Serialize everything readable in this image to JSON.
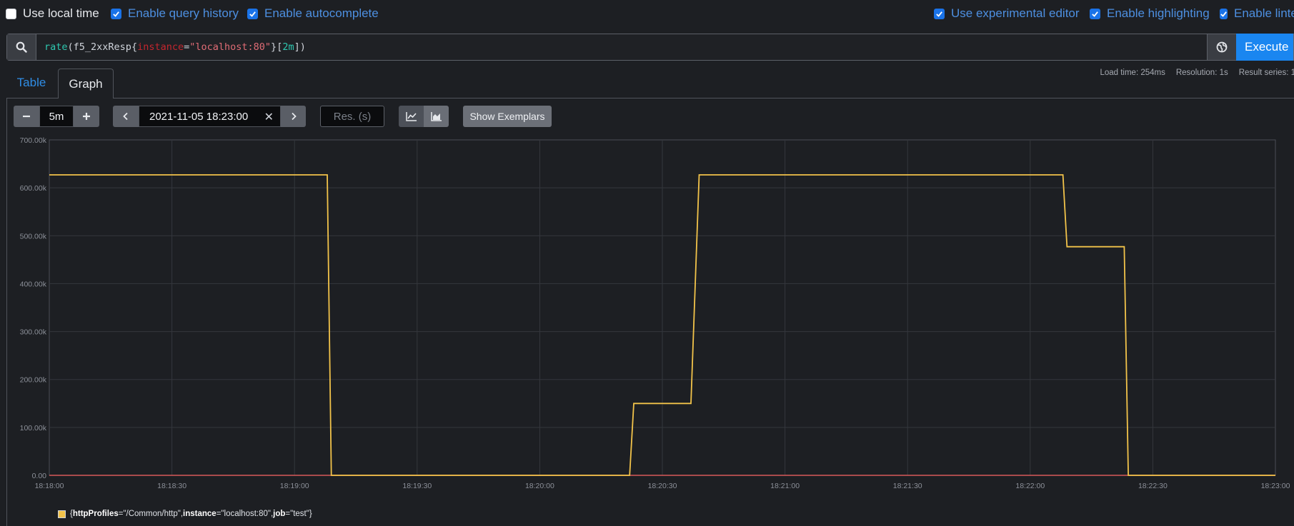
{
  "options": {
    "left": [
      {
        "label": "Use local time",
        "checked": false
      },
      {
        "label": "Enable query history",
        "checked": true
      },
      {
        "label": "Enable autocomplete",
        "checked": true
      }
    ],
    "right": [
      {
        "label": "Use experimental editor",
        "checked": true
      },
      {
        "label": "Enable highlighting",
        "checked": true
      },
      {
        "label": "Enable linter",
        "checked": true
      }
    ]
  },
  "query": {
    "fn": "rate",
    "open_paren": "(",
    "metric": "f5_2xxResp",
    "brace_open": "{",
    "label_name": "instance",
    "eq": "=",
    "label_value": "\"localhost:80\"",
    "brace_close": "}",
    "bracket_open": "[",
    "duration": "2m",
    "bracket_close": "])",
    "execute_label": "Execute"
  },
  "tabs": {
    "table": "Table",
    "graph": "Graph"
  },
  "stats": {
    "load_time": "Load time: 254ms",
    "resolution": "Resolution: 1s",
    "result_series": "Result series: 1"
  },
  "controls": {
    "range_value": "5m",
    "end_time": "2021-11-05 18:23:00",
    "resolution_placeholder": "Res. (s)",
    "show_exemplars": "Show Exemplars"
  },
  "chart_data": {
    "type": "line",
    "x_ticks": [
      "18:18:00",
      "18:18:30",
      "18:19:00",
      "18:19:30",
      "18:20:00",
      "18:20:30",
      "18:21:00",
      "18:21:30",
      "18:22:00",
      "18:22:30",
      "18:23:00"
    ],
    "y_ticks": [
      "0.00",
      "100.00k",
      "200.00k",
      "300.00k",
      "400.00k",
      "500.00k",
      "600.00k",
      "700.00k"
    ],
    "ylim": [
      0,
      700000
    ],
    "xlim_seconds": [
      0,
      300
    ],
    "grid": true,
    "legend_position": "bottom-left",
    "series": [
      {
        "name": "{httpProfiles=\"/Common/http\", instance=\"localhost:80\", job=\"test\"}",
        "color": "#f2c34a",
        "points": [
          [
            0,
            627000
          ],
          [
            68,
            627000
          ],
          [
            69,
            0
          ],
          [
            142,
            0
          ],
          [
            143,
            150000
          ],
          [
            157,
            150000
          ],
          [
            159,
            627000
          ],
          [
            248,
            627000
          ],
          [
            249,
            477000
          ],
          [
            263,
            477000
          ],
          [
            264,
            0
          ],
          [
            300,
            0
          ]
        ]
      }
    ]
  },
  "legend": {
    "k1": "httpProfiles",
    "v1": "=\"/Common/http\", ",
    "k2": "instance",
    "v2": "=\"localhost:80\", ",
    "k3": "job",
    "v3": "=\"test\"}",
    "open": "{"
  }
}
